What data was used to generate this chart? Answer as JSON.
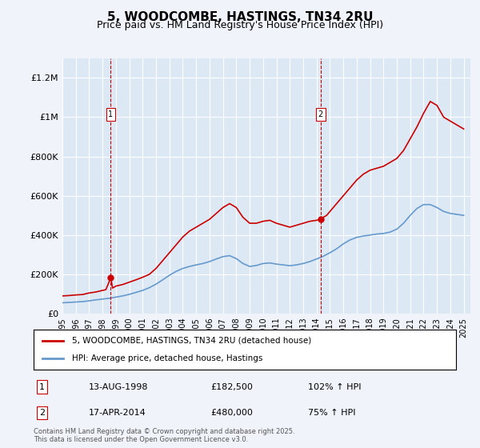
{
  "title": "5, WOODCOMBE, HASTINGS, TN34 2RU",
  "subtitle": "Price paid vs. HM Land Registry's House Price Index (HPI)",
  "title_fontsize": 12,
  "subtitle_fontsize": 10,
  "bg_color": "#dce9f5",
  "plot_bg_color": "#dce9f5",
  "fig_bg_color": "#f0f4fa",
  "ylim": [
    0,
    1300000
  ],
  "xlim_start": 1995.0,
  "xlim_end": 2025.5,
  "yticks": [
    0,
    200000,
    400000,
    600000,
    800000,
    1000000,
    1200000
  ],
  "ytick_labels": [
    "£0",
    "£200K",
    "£400K",
    "£600K",
    "£800K",
    "£1M",
    "£1.2M"
  ],
  "xticks": [
    1995,
    1996,
    1997,
    1998,
    1999,
    2000,
    2001,
    2002,
    2003,
    2004,
    2005,
    2006,
    2007,
    2008,
    2009,
    2010,
    2011,
    2012,
    2013,
    2014,
    2015,
    2016,
    2017,
    2018,
    2019,
    2020,
    2021,
    2022,
    2023,
    2024,
    2025
  ],
  "sale1_x": 1998.617,
  "sale1_y": 182500,
  "sale2_x": 2014.292,
  "sale2_y": 480000,
  "marker1_label": "1",
  "marker2_label": "2",
  "red_line_color": "#cc0000",
  "blue_line_color": "#6699cc",
  "vline_color": "#cc0000",
  "legend_red_label": "5, WOODCOMBE, HASTINGS, TN34 2RU (detached house)",
  "legend_blue_label": "HPI: Average price, detached house, Hastings",
  "annotation1_num": "1",
  "annotation1_date": "13-AUG-1998",
  "annotation1_price": "£182,500",
  "annotation1_hpi": "102% ↑ HPI",
  "annotation2_num": "2",
  "annotation2_date": "17-APR-2014",
  "annotation2_price": "£480,000",
  "annotation2_hpi": "75% ↑ HPI",
  "copyright_text": "Contains HM Land Registry data © Crown copyright and database right 2025.\nThis data is licensed under the Open Government Licence v3.0.",
  "red_hpi_data": [
    [
      1995.0,
      90000
    ],
    [
      1995.5,
      92000
    ],
    [
      1996.0,
      95000
    ],
    [
      1996.5,
      97000
    ],
    [
      1997.0,
      105000
    ],
    [
      1997.5,
      110000
    ],
    [
      1998.0,
      118000
    ],
    [
      1998.25,
      122000
    ],
    [
      1998.617,
      182500
    ],
    [
      1998.75,
      130000
    ],
    [
      1999.0,
      140000
    ],
    [
      1999.5,
      148000
    ],
    [
      2000.0,
      160000
    ],
    [
      2000.5,
      172000
    ],
    [
      2001.0,
      185000
    ],
    [
      2001.5,
      200000
    ],
    [
      2002.0,
      230000
    ],
    [
      2002.5,
      270000
    ],
    [
      2003.0,
      310000
    ],
    [
      2003.5,
      350000
    ],
    [
      2004.0,
      390000
    ],
    [
      2004.5,
      420000
    ],
    [
      2005.0,
      440000
    ],
    [
      2005.5,
      460000
    ],
    [
      2006.0,
      480000
    ],
    [
      2006.5,
      510000
    ],
    [
      2007.0,
      540000
    ],
    [
      2007.5,
      560000
    ],
    [
      2008.0,
      540000
    ],
    [
      2008.5,
      490000
    ],
    [
      2009.0,
      460000
    ],
    [
      2009.5,
      460000
    ],
    [
      2010.0,
      470000
    ],
    [
      2010.5,
      475000
    ],
    [
      2011.0,
      460000
    ],
    [
      2011.5,
      450000
    ],
    [
      2012.0,
      440000
    ],
    [
      2012.5,
      450000
    ],
    [
      2013.0,
      460000
    ],
    [
      2013.5,
      470000
    ],
    [
      2014.0,
      475000
    ],
    [
      2014.292,
      480000
    ],
    [
      2014.5,
      490000
    ],
    [
      2014.75,
      500000
    ],
    [
      2015.0,
      520000
    ],
    [
      2015.5,
      560000
    ],
    [
      2016.0,
      600000
    ],
    [
      2016.5,
      640000
    ],
    [
      2017.0,
      680000
    ],
    [
      2017.5,
      710000
    ],
    [
      2018.0,
      730000
    ],
    [
      2018.5,
      740000
    ],
    [
      2019.0,
      750000
    ],
    [
      2019.5,
      770000
    ],
    [
      2020.0,
      790000
    ],
    [
      2020.5,
      830000
    ],
    [
      2021.0,
      890000
    ],
    [
      2021.5,
      950000
    ],
    [
      2022.0,
      1020000
    ],
    [
      2022.5,
      1080000
    ],
    [
      2023.0,
      1060000
    ],
    [
      2023.5,
      1000000
    ],
    [
      2024.0,
      980000
    ],
    [
      2024.5,
      960000
    ],
    [
      2025.0,
      940000
    ]
  ],
  "blue_hpi_data": [
    [
      1995.0,
      55000
    ],
    [
      1995.5,
      57000
    ],
    [
      1996.0,
      59000
    ],
    [
      1996.5,
      61000
    ],
    [
      1997.0,
      65000
    ],
    [
      1997.5,
      70000
    ],
    [
      1998.0,
      74000
    ],
    [
      1998.5,
      78000
    ],
    [
      1999.0,
      84000
    ],
    [
      1999.5,
      90000
    ],
    [
      2000.0,
      98000
    ],
    [
      2000.5,
      108000
    ],
    [
      2001.0,
      118000
    ],
    [
      2001.5,
      132000
    ],
    [
      2002.0,
      150000
    ],
    [
      2002.5,
      172000
    ],
    [
      2003.0,
      195000
    ],
    [
      2003.5,
      215000
    ],
    [
      2004.0,
      230000
    ],
    [
      2004.5,
      240000
    ],
    [
      2005.0,
      248000
    ],
    [
      2005.5,
      255000
    ],
    [
      2006.0,
      265000
    ],
    [
      2006.5,
      278000
    ],
    [
      2007.0,
      290000
    ],
    [
      2007.5,
      295000
    ],
    [
      2008.0,
      280000
    ],
    [
      2008.5,
      255000
    ],
    [
      2009.0,
      240000
    ],
    [
      2009.5,
      245000
    ],
    [
      2010.0,
      255000
    ],
    [
      2010.5,
      258000
    ],
    [
      2011.0,
      252000
    ],
    [
      2011.5,
      248000
    ],
    [
      2012.0,
      244000
    ],
    [
      2012.5,
      248000
    ],
    [
      2013.0,
      255000
    ],
    [
      2013.5,
      265000
    ],
    [
      2014.0,
      278000
    ],
    [
      2014.5,
      292000
    ],
    [
      2015.0,
      310000
    ],
    [
      2015.5,
      330000
    ],
    [
      2016.0,
      355000
    ],
    [
      2016.5,
      375000
    ],
    [
      2017.0,
      388000
    ],
    [
      2017.5,
      395000
    ],
    [
      2018.0,
      400000
    ],
    [
      2018.5,
      405000
    ],
    [
      2019.0,
      408000
    ],
    [
      2019.5,
      415000
    ],
    [
      2020.0,
      430000
    ],
    [
      2020.5,
      460000
    ],
    [
      2021.0,
      500000
    ],
    [
      2021.5,
      535000
    ],
    [
      2022.0,
      555000
    ],
    [
      2022.5,
      555000
    ],
    [
      2023.0,
      540000
    ],
    [
      2023.5,
      520000
    ],
    [
      2024.0,
      510000
    ],
    [
      2024.5,
      505000
    ],
    [
      2025.0,
      500000
    ]
  ]
}
